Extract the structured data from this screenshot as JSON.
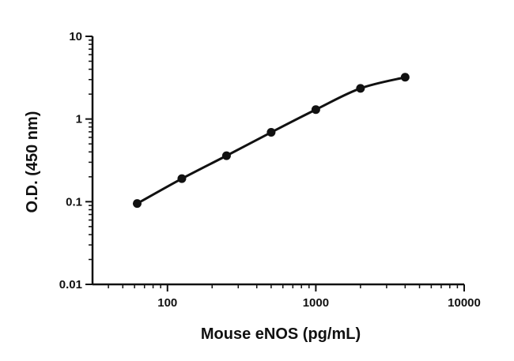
{
  "chart_data": {
    "type": "scatter",
    "xlabel": "Mouse eNOS (pg/mL)",
    "ylabel": "O.D. (450 nm)",
    "xscale": "log",
    "yscale": "log",
    "xlim": [
      31.25,
      10000
    ],
    "ylim": [
      0.01,
      10
    ],
    "xticks": [
      100,
      1000,
      10000
    ],
    "xtick_labels": [
      "100",
      "1000",
      "10000"
    ],
    "yticks": [
      0.01,
      0.1,
      1,
      10
    ],
    "ytick_labels": [
      "0.01",
      "0.1",
      "1",
      "10"
    ],
    "grid": false,
    "legend": "none",
    "fit": "smooth curve through points",
    "series": [
      {
        "x": [
          62.5,
          125,
          250,
          500,
          1000,
          2000,
          4000
        ],
        "y": [
          0.095,
          0.19,
          0.36,
          0.69,
          1.3,
          2.35,
          3.2
        ]
      }
    ],
    "colors": {
      "marks": "#111111"
    }
  }
}
